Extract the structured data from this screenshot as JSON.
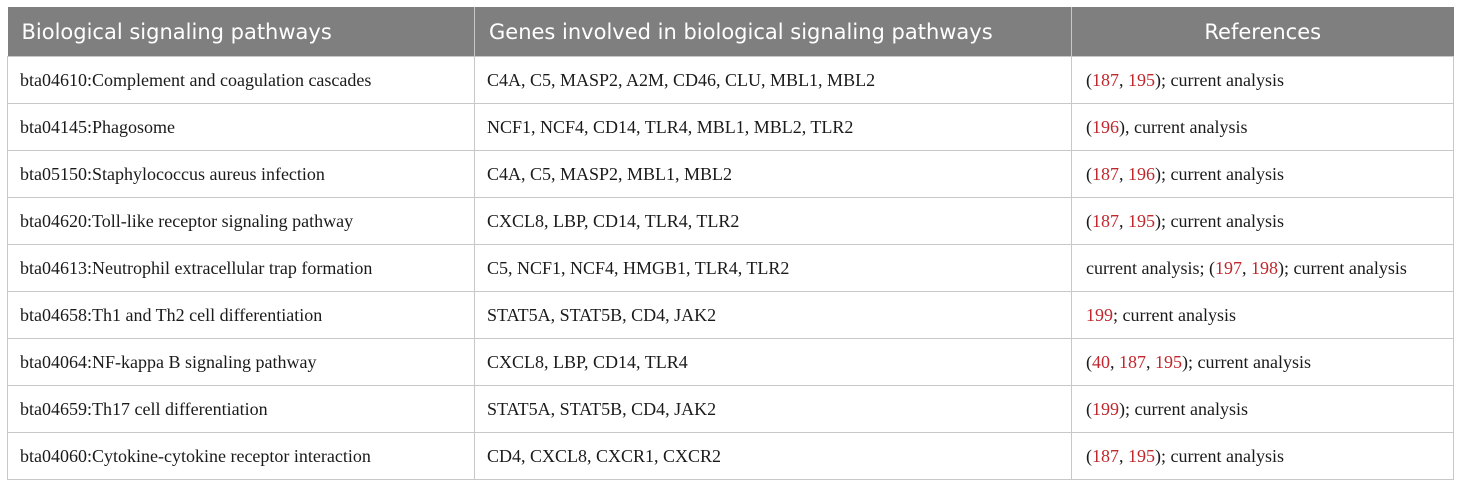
{
  "header": {
    "col1": "Biological signaling pathways",
    "col2": "Genes involved in biological signaling pathways",
    "col3": "References"
  },
  "rows": [
    {
      "pathway": "bta04610:Complement and coagulation cascades",
      "genes": "C4A, C5, MASP2, A2M, CD46, CLU, MBL1, MBL2",
      "refs": [
        {
          "t": "(",
          "link": false
        },
        {
          "t": "187",
          "link": true
        },
        {
          "t": ", ",
          "link": false
        },
        {
          "t": "195",
          "link": true
        },
        {
          "t": "); current analysis",
          "link": false
        }
      ]
    },
    {
      "pathway": "bta04145:Phagosome",
      "genes": "NCF1, NCF4, CD14, TLR4, MBL1, MBL2, TLR2",
      "refs": [
        {
          "t": "(",
          "link": false
        },
        {
          "t": "196",
          "link": true
        },
        {
          "t": "), current analysis",
          "link": false
        }
      ]
    },
    {
      "pathway": "bta05150:Staphylococcus aureus infection",
      "genes": "C4A, C5, MASP2, MBL1, MBL2",
      "refs": [
        {
          "t": "(",
          "link": false
        },
        {
          "t": "187",
          "link": true
        },
        {
          "t": ", ",
          "link": false
        },
        {
          "t": "196",
          "link": true
        },
        {
          "t": "); current analysis",
          "link": false
        }
      ]
    },
    {
      "pathway": "bta04620:Toll-like receptor signaling pathway",
      "genes": "CXCL8, LBP, CD14, TLR4, TLR2",
      "refs": [
        {
          "t": "(",
          "link": false
        },
        {
          "t": "187",
          "link": true
        },
        {
          "t": ", ",
          "link": false
        },
        {
          "t": "195",
          "link": true
        },
        {
          "t": "); current analysis",
          "link": false
        }
      ]
    },
    {
      "pathway": "bta04613:Neutrophil extracellular trap formation",
      "genes": "C5, NCF1, NCF4, HMGB1, TLR4, TLR2",
      "refs": [
        {
          "t": "current analysis; (",
          "link": false
        },
        {
          "t": "197",
          "link": true
        },
        {
          "t": ", ",
          "link": false
        },
        {
          "t": "198",
          "link": true
        },
        {
          "t": "); current analysis",
          "link": false
        }
      ]
    },
    {
      "pathway": "bta04658:Th1 and Th2 cell differentiation",
      "genes": "STAT5A, STAT5B, CD4, JAK2",
      "refs": [
        {
          "t": "199",
          "link": true
        },
        {
          "t": "; current analysis",
          "link": false
        }
      ]
    },
    {
      "pathway": "bta04064:NF-kappa B signaling pathway",
      "genes": "CXCL8, LBP, CD14, TLR4",
      "refs": [
        {
          "t": "(",
          "link": false
        },
        {
          "t": "40",
          "link": true
        },
        {
          "t": ", ",
          "link": false
        },
        {
          "t": "187",
          "link": true
        },
        {
          "t": ", ",
          "link": false
        },
        {
          "t": "195",
          "link": true
        },
        {
          "t": "); current analysis",
          "link": false
        }
      ]
    },
    {
      "pathway": "bta04659:Th17 cell differentiation",
      "genes": "STAT5A, STAT5B, CD4, JAK2",
      "refs": [
        {
          "t": "(",
          "link": false
        },
        {
          "t": "199",
          "link": true
        },
        {
          "t": "); current analysis",
          "link": false
        }
      ]
    },
    {
      "pathway": "bta04060:Cytokine-cytokine receptor interaction",
      "genes": "CD4, CXCL8, CXCR1, CXCR2",
      "refs": [
        {
          "t": "(",
          "link": false
        },
        {
          "t": "187",
          "link": true
        },
        {
          "t": ", ",
          "link": false
        },
        {
          "t": "195",
          "link": true
        },
        {
          "t": "); current analysis",
          "link": false
        }
      ]
    }
  ],
  "colors": {
    "header_bg": "#7f7f7f",
    "header_text": "#ffffff",
    "ref_link": "#c0272d",
    "border": "#c8c8c8"
  }
}
